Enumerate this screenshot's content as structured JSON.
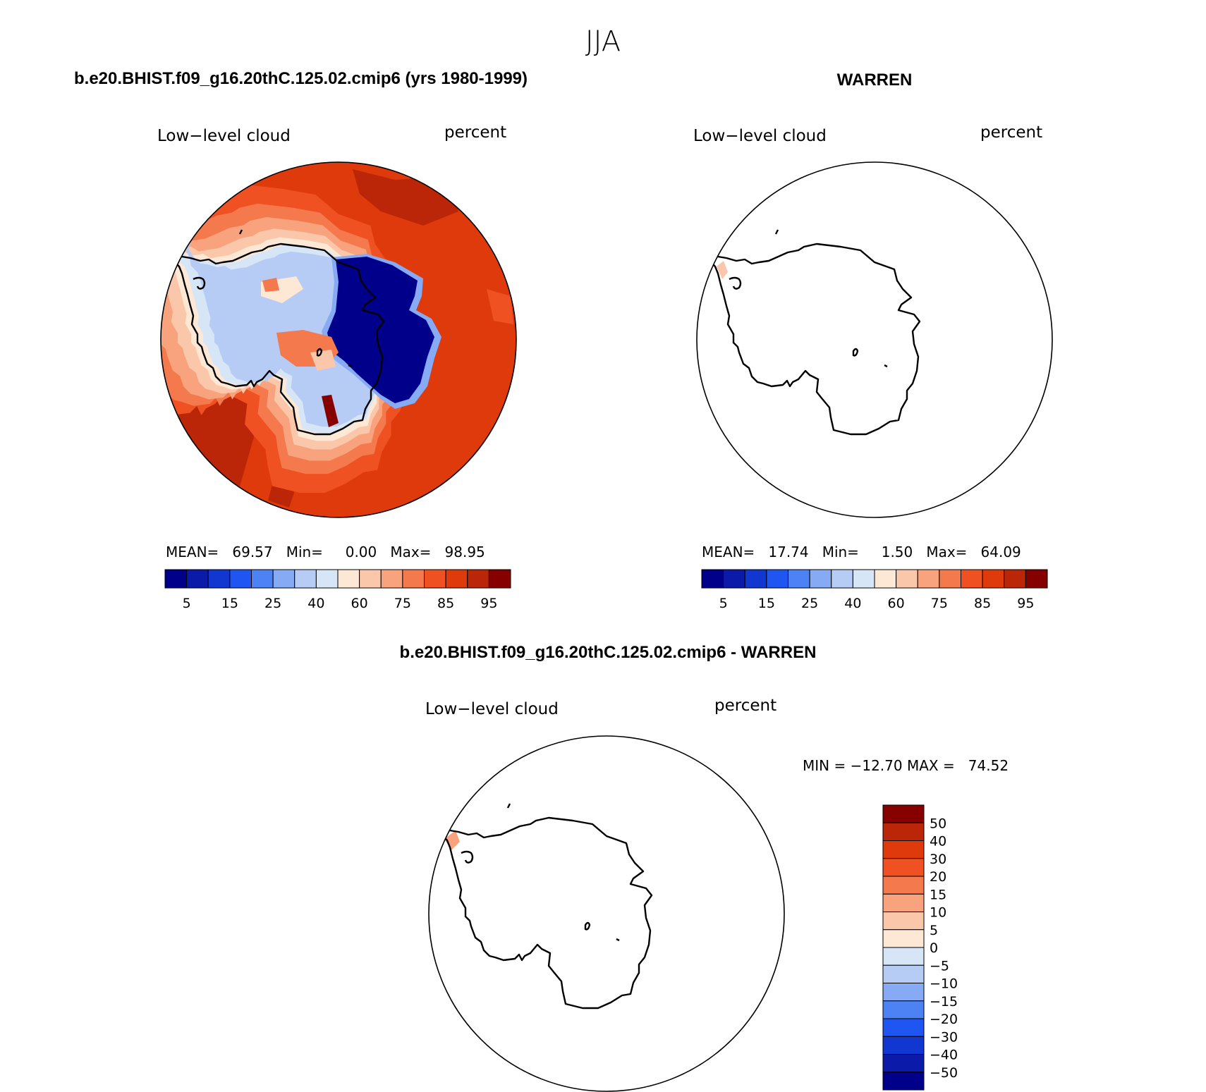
{
  "season": "JJA",
  "palette": [
    "#00008b",
    "#0b1aa8",
    "#1236d0",
    "#1f56f2",
    "#4d82f5",
    "#86aaf3",
    "#b6ccf5",
    "#d7e6f7",
    "#fde8d6",
    "#fbc7aa",
    "#f8a37d",
    "#f47a4e",
    "#ef5123",
    "#df3a0c",
    "#bc2608",
    "#860000"
  ],
  "chart_data": [
    {
      "type": "heatmap",
      "case": "b.e20.BHIST.f09_g16.20thC.125.02.cmip6 (yrs 1980-1999)",
      "variable": "Low−level cloud",
      "units": "percent",
      "stats": {
        "mean": "69.57",
        "min": "0.00",
        "max": "98.95"
      },
      "stats_text": "MEAN=   69.57   Min=     0.00   Max=   98.95",
      "colorbar_ticks": [
        "5",
        "15",
        "25",
        "40",
        "60",
        "75",
        "85",
        "95"
      ],
      "field_summary": "high cloud fraction (75-95) over the Southern Ocean, near-zero (<5) over interior East Antarctica"
    },
    {
      "type": "heatmap",
      "case": "WARREN",
      "variable": "Low−level cloud",
      "units": "percent",
      "stats": {
        "mean": "17.74",
        "min": "1.50",
        "max": "64.09"
      },
      "stats_text": "MEAN=   17.74   Min=     1.50   Max=   64.09",
      "colorbar_ticks": [
        "5",
        "15",
        "25",
        "40",
        "60",
        "75",
        "85",
        "95"
      ],
      "field_summary": "observations only at a single small box near the western edge (~60-75 percent)"
    },
    {
      "type": "heatmap",
      "case": "b.e20.BHIST.f09_g16.20thC.125.02.cmip6 - WARREN",
      "variable": "Low−level cloud",
      "units": "percent",
      "stats": {
        "min": "−12.70",
        "max": "74.52"
      },
      "stats_text": "MIN = −12.70 MAX =   74.52",
      "colorbar_ticks": [
        "50",
        "40",
        "30",
        "20",
        "15",
        "10",
        "5",
        "0",
        "−5",
        "−10",
        "−15",
        "−20",
        "−30",
        "−40",
        "−50"
      ],
      "colorbar_colors": [
        "#860000",
        "#bc2608",
        "#df3a0c",
        "#ef5123",
        "#f47a4e",
        "#f8a37d",
        "#fbc7aa",
        "#fde8d6",
        "#d7e6f7",
        "#b6ccf5",
        "#86aaf3",
        "#4d82f5",
        "#1f56f2",
        "#1236d0",
        "#0b1aa8",
        "#00008b"
      ],
      "field_summary": "difference only at the small observed box near the western edge (~15-30 percent)"
    }
  ]
}
